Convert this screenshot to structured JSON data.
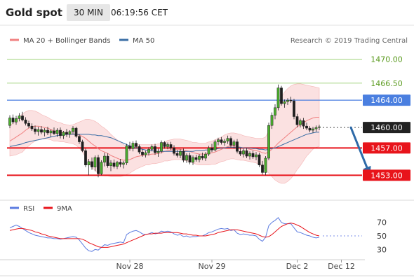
{
  "header": {
    "title": "Gold spot",
    "timeframe": "30 MIN",
    "time": "06:19:56 CET"
  },
  "legend": [
    {
      "label": "MA 20 + Bollinger Bands",
      "color": "#f08080"
    },
    {
      "label": "MA 50",
      "color": "#3a6ea5"
    }
  ],
  "copyright": "Research © 2019 Trading Central",
  "chart_data": {
    "type": "candlestick",
    "price_ylim": [
      1451.7,
      1471.3
    ],
    "levels": [
      {
        "value": 1470.0,
        "label": "1470.00",
        "color": "#9fd27a",
        "text_color": "#5a9a1e",
        "style": "thin"
      },
      {
        "value": 1466.5,
        "label": "1466.50",
        "color": "#9fd27a",
        "text_color": "#5a9a1e",
        "style": "thin"
      },
      {
        "value": 1464.0,
        "label": "1464.00",
        "color": "#4a7fe0",
        "text_color": "#ffffff",
        "style": "box-blue"
      },
      {
        "value": 1460.0,
        "label": "1460.00",
        "color": "#222222",
        "text_color": "#ffffff",
        "style": "box-dark"
      },
      {
        "value": 1457.0,
        "label": "1457.00",
        "color": "#e8141b",
        "text_color": "#ffffff",
        "style": "box-red"
      },
      {
        "value": 1453.0,
        "label": "1453.00",
        "color": "#e8141b",
        "text_color": "#ffffff",
        "style": "box-red"
      }
    ],
    "current_price": 1460.0,
    "forecast_arrow": {
      "from": [
        108,
        1460.0
      ],
      "to": [
        114,
        1453.1
      ],
      "color": "#2e6aa8"
    },
    "x_ticks": [
      {
        "label": "Nov 28",
        "index": 38
      },
      {
        "label": "Nov 29",
        "index": 64
      },
      {
        "label": "Dec 2",
        "index": 91
      },
      {
        "label": "Dec 12",
        "index": 105
      }
    ],
    "candles": [
      [
        1460.3,
        1461.8,
        1459.9,
        1461.4
      ],
      [
        1461.4,
        1461.9,
        1460.5,
        1460.8
      ],
      [
        1460.8,
        1461.7,
        1460.4,
        1461.3
      ],
      [
        1461.3,
        1462.1,
        1460.9,
        1461.7
      ],
      [
        1461.7,
        1462.3,
        1460.9,
        1461.1
      ],
      [
        1461.1,
        1461.5,
        1460.3,
        1460.6
      ],
      [
        1460.6,
        1461.0,
        1459.9,
        1460.2
      ],
      [
        1460.2,
        1460.6,
        1459.5,
        1459.8
      ],
      [
        1459.8,
        1460.3,
        1459.0,
        1459.4
      ],
      [
        1459.4,
        1460.1,
        1458.8,
        1459.7
      ],
      [
        1459.7,
        1460.2,
        1459.0,
        1459.3
      ],
      [
        1459.3,
        1459.9,
        1458.7,
        1459.6
      ],
      [
        1459.6,
        1460.1,
        1458.9,
        1459.2
      ],
      [
        1459.2,
        1459.7,
        1458.6,
        1459.5
      ],
      [
        1459.5,
        1460.0,
        1458.9,
        1459.1
      ],
      [
        1459.1,
        1459.9,
        1458.6,
        1459.6
      ],
      [
        1459.6,
        1460.0,
        1458.4,
        1458.8
      ],
      [
        1458.8,
        1459.5,
        1458.3,
        1459.3
      ],
      [
        1459.3,
        1459.8,
        1458.6,
        1459.0
      ],
      [
        1459.0,
        1459.6,
        1458.5,
        1459.4
      ],
      [
        1459.4,
        1460.2,
        1459.0,
        1459.9
      ],
      [
        1459.9,
        1460.1,
        1458.5,
        1458.7
      ],
      [
        1458.7,
        1459.0,
        1457.6,
        1457.9
      ],
      [
        1457.9,
        1458.2,
        1456.4,
        1456.6
      ],
      [
        1456.6,
        1456.9,
        1454.2,
        1454.5
      ],
      [
        1454.5,
        1455.4,
        1453.0,
        1455.0
      ],
      [
        1455.0,
        1455.6,
        1453.8,
        1454.2
      ],
      [
        1454.2,
        1455.9,
        1453.6,
        1455.6
      ],
      [
        1455.6,
        1456.0,
        1452.7,
        1453.2
      ],
      [
        1453.2,
        1455.2,
        1453.0,
        1454.9
      ],
      [
        1454.9,
        1456.3,
        1454.3,
        1455.8
      ],
      [
        1455.8,
        1456.2,
        1454.1,
        1454.4
      ],
      [
        1454.4,
        1455.2,
        1453.6,
        1454.8
      ],
      [
        1454.8,
        1455.3,
        1454.0,
        1454.3
      ],
      [
        1454.3,
        1455.1,
        1453.9,
        1454.9
      ],
      [
        1454.9,
        1455.4,
        1454.2,
        1454.6
      ],
      [
        1454.6,
        1455.1,
        1454.0,
        1454.8
      ],
      [
        1454.8,
        1457.6,
        1454.5,
        1457.3
      ],
      [
        1457.3,
        1457.9,
        1456.6,
        1456.9
      ],
      [
        1456.9,
        1458.0,
        1456.5,
        1457.7
      ],
      [
        1457.7,
        1458.1,
        1456.9,
        1457.2
      ],
      [
        1457.2,
        1457.5,
        1456.1,
        1456.4
      ],
      [
        1456.4,
        1456.8,
        1455.7,
        1456.0
      ],
      [
        1456.0,
        1456.6,
        1455.6,
        1456.3
      ],
      [
        1456.3,
        1457.1,
        1455.9,
        1456.8
      ],
      [
        1456.8,
        1457.5,
        1456.5,
        1457.2
      ],
      [
        1457.2,
        1457.6,
        1456.0,
        1456.3
      ],
      [
        1456.3,
        1456.9,
        1455.7,
        1456.5
      ],
      [
        1456.5,
        1458.1,
        1456.2,
        1457.8
      ],
      [
        1457.8,
        1458.0,
        1456.9,
        1457.2
      ],
      [
        1457.2,
        1457.8,
        1456.8,
        1457.5
      ],
      [
        1457.5,
        1457.9,
        1456.7,
        1457.0
      ],
      [
        1457.0,
        1457.4,
        1455.9,
        1456.2
      ],
      [
        1456.2,
        1456.7,
        1455.6,
        1455.9
      ],
      [
        1455.9,
        1456.8,
        1455.5,
        1456.5
      ],
      [
        1456.5,
        1456.9,
        1454.9,
        1455.2
      ],
      [
        1455.2,
        1456.2,
        1454.8,
        1455.9
      ],
      [
        1455.9,
        1456.3,
        1454.6,
        1454.9
      ],
      [
        1454.9,
        1455.9,
        1454.5,
        1455.6
      ],
      [
        1455.6,
        1456.0,
        1455.0,
        1455.3
      ],
      [
        1455.3,
        1456.1,
        1454.9,
        1455.8
      ],
      [
        1455.8,
        1456.3,
        1455.2,
        1455.5
      ],
      [
        1455.5,
        1456.4,
        1455.1,
        1456.1
      ],
      [
        1456.1,
        1457.3,
        1455.8,
        1457.0
      ],
      [
        1457.0,
        1457.6,
        1456.4,
        1456.7
      ],
      [
        1456.7,
        1458.2,
        1456.5,
        1457.9
      ],
      [
        1457.9,
        1458.5,
        1457.4,
        1458.2
      ],
      [
        1458.2,
        1458.6,
        1457.5,
        1457.8
      ],
      [
        1457.8,
        1458.3,
        1457.3,
        1458.0
      ],
      [
        1458.0,
        1458.8,
        1457.6,
        1458.4
      ],
      [
        1458.4,
        1458.7,
        1457.1,
        1457.4
      ],
      [
        1457.4,
        1458.2,
        1456.9,
        1457.9
      ],
      [
        1457.9,
        1458.3,
        1456.2,
        1456.5
      ],
      [
        1456.5,
        1457.0,
        1455.8,
        1456.1
      ],
      [
        1456.1,
        1456.9,
        1455.6,
        1456.6
      ],
      [
        1456.6,
        1457.0,
        1455.5,
        1455.8
      ],
      [
        1455.8,
        1456.5,
        1455.3,
        1456.2
      ],
      [
        1456.2,
        1456.6,
        1455.4,
        1455.7
      ],
      [
        1455.7,
        1456.4,
        1455.2,
        1456.0
      ],
      [
        1456.0,
        1456.3,
        1454.2,
        1454.5
      ],
      [
        1454.5,
        1455.1,
        1453.1,
        1453.4
      ],
      [
        1453.4,
        1455.8,
        1453.0,
        1455.5
      ],
      [
        1455.5,
        1460.7,
        1455.2,
        1460.3
      ],
      [
        1460.3,
        1462.2,
        1459.8,
        1461.8
      ],
      [
        1461.8,
        1463.4,
        1461.2,
        1462.9
      ],
      [
        1462.9,
        1466.3,
        1462.5,
        1465.8
      ],
      [
        1465.8,
        1466.1,
        1463.2,
        1463.5
      ],
      [
        1463.5,
        1464.1,
        1462.9,
        1463.8
      ],
      [
        1463.8,
        1464.3,
        1463.3,
        1464.0
      ],
      [
        1464.0,
        1464.5,
        1463.6,
        1463.9
      ],
      [
        1463.9,
        1464.2,
        1461.2,
        1461.6
      ],
      [
        1461.6,
        1462.0,
        1460.0,
        1460.4
      ],
      [
        1460.4,
        1461.3,
        1460.0,
        1461.0
      ],
      [
        1461.0,
        1461.4,
        1459.8,
        1460.2
      ],
      [
        1460.2,
        1460.7,
        1459.6,
        1459.9
      ],
      [
        1459.9,
        1460.2,
        1459.3,
        1459.6
      ],
      [
        1459.6,
        1460.1,
        1459.2,
        1459.8
      ],
      [
        1459.8,
        1460.3,
        1459.4,
        1460.0
      ],
      [
        1460.0,
        1460.4,
        1459.6,
        1460.1
      ]
    ],
    "ma20": [
      1458.0,
      1458.3,
      1458.6,
      1458.9,
      1459.2,
      1459.6,
      1459.9,
      1460.1,
      1460.2,
      1460.2,
      1460.1,
      1460.0,
      1459.9,
      1459.7,
      1459.5,
      1459.4,
      1459.3,
      1459.2,
      1459.1,
      1459.0,
      1459.0,
      1459.0,
      1458.9,
      1458.7,
      1458.4,
      1458.0,
      1457.6,
      1457.3,
      1456.9,
      1456.6,
      1456.4,
      1456.2,
      1455.9,
      1455.7,
      1455.5,
      1455.3,
      1455.2,
      1455.2,
      1455.3,
      1455.5,
      1455.7,
      1455.8,
      1455.9,
      1456.0,
      1456.0,
      1456.1,
      1456.1,
      1456.2,
      1456.3,
      1456.5,
      1456.6,
      1456.7,
      1456.8,
      1456.8,
      1456.8,
      1456.7,
      1456.6,
      1456.5,
      1456.3,
      1456.2,
      1456.1,
      1456.1,
      1456.1,
      1456.2,
      1456.3,
      1456.4,
      1456.6,
      1456.8,
      1457.0,
      1457.2,
      1457.3,
      1457.3,
      1457.2,
      1457.1,
      1457.0,
      1456.9,
      1456.8,
      1456.7,
      1456.6,
      1456.5,
      1456.3,
      1456.2,
      1456.4,
      1456.8,
      1457.2,
      1457.7,
      1458.1,
      1458.5,
      1458.9,
      1459.3,
      1459.7,
      1460.1,
      1460.4,
      1460.7,
      1461.0,
      1461.2,
      1461.4,
      1461.5,
      1461.5
    ],
    "ma50": [
      1457.2,
      1457.3,
      1457.4,
      1457.5,
      1457.6,
      1457.8,
      1457.9,
      1458.0,
      1458.1,
      1458.2,
      1458.3,
      1458.4,
      1458.5,
      1458.6,
      1458.7,
      1458.8,
      1458.9,
      1458.9,
      1459.0,
      1459.0,
      1459.0,
      1459.0,
      1459.0,
      1459.0,
      1459.0,
      1459.0,
      1458.9,
      1458.9,
      1458.8,
      1458.8,
      1458.7,
      1458.6,
      1458.5,
      1458.3,
      1458.1,
      1457.9,
      1457.7,
      1457.5,
      1457.3,
      1457.1,
      1457.0,
      1456.9,
      1456.8,
      1456.7,
      1456.6,
      1456.6,
      1456.5,
      1456.5,
      1456.5,
      1456.5,
      1456.5,
      1456.5,
      1456.5,
      1456.5,
      1456.5,
      1456.5,
      1456.5,
      1456.5,
      1456.5,
      1456.6,
      1456.6,
      1456.6,
      1456.7,
      1456.7,
      1456.8,
      1456.8,
      1456.9,
      1457.0,
      1457.0,
      1457.1,
      1457.1,
      1457.1,
      1457.1,
      1457.1,
      1457.0,
      1457.0,
      1457.0,
      1456.9,
      1456.9,
      1456.8,
      1456.8,
      1456.7,
      1456.8,
      1456.9,
      1457.0,
      1457.2,
      1457.4,
      1457.6,
      1457.8,
      1458.0,
      1458.2,
      1458.4,
      1458.6,
      1458.8,
      1459.0,
      1459.1,
      1459.2,
      1459.3,
      1459.3
    ],
    "bb_width": [
      2.2,
      2.4,
      2.6,
      2.7,
      2.8,
      2.7,
      2.6,
      2.4,
      2.2,
      2.0,
      1.8,
      1.7,
      1.6,
      1.5,
      1.5,
      1.4,
      1.4,
      1.3,
      1.3,
      1.3,
      1.4,
      1.6,
      1.9,
      2.3,
      2.8,
      3.2,
      3.5,
      3.6,
      3.7,
      3.6,
      3.5,
      3.3,
      3.1,
      2.9,
      2.7,
      2.5,
      2.3,
      2.1,
      2.0,
      1.9,
      1.8,
      1.7,
      1.6,
      1.5,
      1.5,
      1.4,
      1.4,
      1.4,
      1.4,
      1.4,
      1.5,
      1.5,
      1.5,
      1.5,
      1.5,
      1.5,
      1.5,
      1.5,
      1.5,
      1.6,
      1.6,
      1.6,
      1.6,
      1.7,
      1.7,
      1.8,
      1.8,
      1.8,
      1.9,
      1.9,
      1.9,
      1.9,
      1.9,
      1.9,
      1.8,
      1.8,
      1.8,
      1.8,
      1.8,
      1.9,
      2.1,
      2.4,
      3.1,
      4.0,
      4.9,
      5.7,
      6.3,
      6.7,
      6.8,
      6.8,
      6.6,
      6.3,
      6.0,
      5.6,
      5.2,
      4.9,
      4.6,
      4.4,
      4.3
    ],
    "rsi": {
      "name": "RSI",
      "color": "#5b7be0",
      "ylim": [
        20,
        80
      ],
      "ticks": [
        70,
        50,
        30
      ],
      "values": [
        62,
        64,
        66,
        64,
        61,
        58,
        55,
        53,
        51,
        50,
        49,
        48,
        47,
        47,
        46,
        46,
        45,
        46,
        47,
        48,
        49,
        48,
        44,
        38,
        32,
        28,
        27,
        30,
        29,
        33,
        37,
        36,
        38,
        39,
        40,
        41,
        40,
        52,
        55,
        57,
        58,
        56,
        53,
        52,
        53,
        55,
        53,
        54,
        57,
        56,
        57,
        56,
        53,
        51,
        52,
        49,
        50,
        48,
        49,
        49,
        50,
        50,
        52,
        55,
        56,
        58,
        60,
        61,
        60,
        61,
        58,
        59,
        54,
        52,
        53,
        52,
        51,
        51,
        50,
        45,
        42,
        48,
        65,
        70,
        73,
        77,
        70,
        68,
        68,
        68,
        62,
        56,
        55,
        53,
        51,
        50,
        48,
        47,
        48
      ],
      "ma_name": "9MA",
      "ma_color": "#e8141b",
      "ma_values": [
        58,
        59,
        60,
        61,
        61,
        60,
        59,
        58,
        56,
        55,
        53,
        52,
        50,
        49,
        48,
        47,
        46,
        46,
        46,
        46,
        46,
        46,
        46,
        45,
        43,
        40,
        38,
        36,
        34,
        33,
        33,
        33,
        34,
        35,
        36,
        37,
        38,
        40,
        42,
        44,
        46,
        48,
        50,
        52,
        53,
        53,
        54,
        54,
        54,
        55,
        55,
        55,
        55,
        55,
        54,
        53,
        53,
        52,
        51,
        51,
        50,
        50,
        50,
        51,
        52,
        53,
        55,
        56,
        57,
        58,
        59,
        59,
        59,
        58,
        57,
        56,
        55,
        54,
        53,
        51,
        49,
        48,
        49,
        52,
        56,
        60,
        64,
        66,
        68,
        69,
        68,
        66,
        64,
        61,
        58,
        55,
        53,
        51,
        50
      ]
    }
  }
}
